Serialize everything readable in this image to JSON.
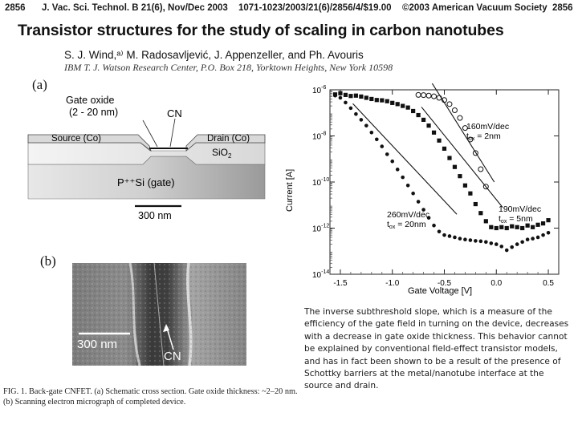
{
  "header": {
    "page_left": "2856",
    "journal": "J. Vac. Sci. Technol. B 21(6), Nov/Dec 2003",
    "code": "1071-1023/2003/21(6)/2856/4/$19.00",
    "copyright": "©2003 American Vacuum Society",
    "page_right": "2856"
  },
  "paper": {
    "title": "Transistor structures for the study of scaling in carbon nanotubes",
    "authors": "S. J. Wind,ᵃ⁾ M. Radosavljević, J. Appenzeller, and Ph. Avouris",
    "affiliation": "IBM T. J. Watson Research Center, P.O. Box 218, Yorktown Heights, New York 10598"
  },
  "figure": {
    "panel_a": {
      "label": "(a)",
      "gate_oxide_label_1": "Gate oxide",
      "gate_oxide_label_2": "(2 - 20 nm)",
      "cn_label": "CN",
      "source_label": "Source (Co)",
      "drain_label": "Drain (Co)",
      "sio2_label": "SiO",
      "sio2_sub": "2",
      "gate_label": "P⁺⁺Si (gate)",
      "scale_label": "300 nm"
    },
    "panel_b": {
      "label": "(b)",
      "scale_label": "300 nm",
      "cn_label": "CN"
    },
    "caption": "FIG. 1. Back-gate CNFET. (a) Schematic cross section. Gate oxide thickness: ~2–20 nm. (b) Scanning electron micrograph of completed device."
  },
  "chart_data": {
    "type": "scatter",
    "ylabel": "Current [A]",
    "xlabel": "Gate Voltage [V]",
    "xlim": [
      -1.6,
      0.6
    ],
    "ylim_log10": [
      -14,
      -6
    ],
    "yscale": "log",
    "xticks": [
      "-1.5",
      "-1.0",
      "-0.5",
      "0.0",
      "0.5"
    ],
    "xtick_values": [
      -1.5,
      -1.0,
      -0.5,
      0.0,
      0.5
    ],
    "ytick_values": [
      -6,
      -8,
      -10,
      -12,
      -14
    ],
    "annotations": [
      {
        "line1": "160mV/dec",
        "line2": "t",
        "sub": "ox",
        "tail": " = 2nm"
      },
      {
        "line1": "190mV/dec",
        "line2": "t",
        "sub": "ox",
        "tail": " = 5nm"
      },
      {
        "line1": "260mV/dec",
        "line2": "t",
        "sub": "ox",
        "tail": " = 20nm"
      }
    ],
    "series": [
      {
        "marker": "open-circle",
        "x": [
          -0.75,
          -0.7,
          -0.65,
          -0.6,
          -0.55,
          -0.5,
          -0.45,
          -0.4,
          -0.35,
          -0.3,
          -0.25,
          -0.2,
          -0.15,
          -0.1
        ],
        "y": [
          6e-07,
          5.9e-07,
          5.6e-07,
          5.2e-07,
          4.5e-07,
          3.6e-07,
          2.4e-07,
          1.3e-07,
          6e-08,
          2.2e-08,
          7e-09,
          1.8e-09,
          3.6e-10,
          6.3e-11
        ]
      },
      {
        "marker": "filled-square",
        "x": [
          -1.55,
          -1.5,
          -1.45,
          -1.4,
          -1.35,
          -1.3,
          -1.25,
          -1.2,
          -1.15,
          -1.1,
          -1.05,
          -1.0,
          -0.95,
          -0.9,
          -0.85,
          -0.8,
          -0.75,
          -0.7,
          -0.65,
          -0.6,
          -0.55,
          -0.5,
          -0.45,
          -0.4,
          -0.35,
          -0.3,
          -0.25,
          -0.2,
          -0.15,
          -0.1,
          -0.05,
          0.0,
          0.05,
          0.1,
          0.15,
          0.2,
          0.25,
          0.3,
          0.35,
          0.4,
          0.45,
          0.5
        ],
        "y": [
          6.3e-07,
          7.1e-07,
          6e-07,
          5.4e-07,
          5.6e-07,
          5.1e-07,
          4.5e-07,
          4e-07,
          3.6e-07,
          3.5e-07,
          3.2e-07,
          2.7e-07,
          2.4e-07,
          2e-07,
          1.7e-07,
          1.2e-07,
          8e-08,
          5e-08,
          2.8e-08,
          1.4e-08,
          6.3e-09,
          2.8e-09,
          1.1e-09,
          4.5e-10,
          1.8e-10,
          7.1e-11,
          3.2e-11,
          1.1e-11,
          4.5e-12,
          2e-12,
          1.1e-12,
          1e-12,
          1.1e-12,
          1e-12,
          1.2e-12,
          1.1e-12,
          1e-12,
          1.3e-12,
          1.1e-12,
          1.4e-12,
          1.6e-12,
          2.2e-12
        ]
      },
      {
        "marker": "filled-circle",
        "x": [
          -1.55,
          -1.5,
          -1.45,
          -1.4,
          -1.35,
          -1.3,
          -1.25,
          -1.2,
          -1.15,
          -1.1,
          -1.05,
          -1.0,
          -0.95,
          -0.9,
          -0.85,
          -0.8,
          -0.75,
          -0.7,
          -0.65,
          -0.6,
          -0.55,
          -0.5,
          -0.45,
          -0.4,
          -0.35,
          -0.3,
          -0.25,
          -0.2,
          -0.15,
          -0.1,
          -0.05,
          0.0,
          0.05,
          0.1,
          0.15,
          0.2,
          0.25,
          0.3,
          0.35,
          0.4,
          0.45,
          0.5
        ],
        "y": [
          5.6e-07,
          4.5e-07,
          2.8e-07,
          1.6e-07,
          8.9e-08,
          5e-08,
          2.8e-08,
          1.4e-08,
          7.1e-09,
          3.5e-09,
          1.6e-09,
          7.9e-10,
          3.5e-10,
          1.6e-10,
          7.1e-11,
          3.2e-11,
          1.4e-11,
          6.3e-12,
          2.8e-12,
          1.3e-12,
          7.1e-13,
          5e-13,
          4.5e-13,
          4e-13,
          3.5e-13,
          3.2e-13,
          3e-13,
          2.8e-13,
          2.7e-13,
          2.5e-13,
          2.2e-13,
          2e-13,
          1.6e-13,
          1.1e-13,
          1.5e-13,
          2e-13,
          2.5e-13,
          3.2e-13,
          3.5e-13,
          4e-13,
          5e-13,
          6.3e-13
        ]
      }
    ]
  },
  "body_text": "The inverse subthreshold slope, which is a measure of the efficiency of the gate field in turning on the device, decreases with a decrease in gate oxide thickness. This behavior cannot be explained by conventional field-effect transistor models, and has in fact been shown to be a result of the presence of Schottky barriers at the metal/nanotube interface at the source and drain."
}
